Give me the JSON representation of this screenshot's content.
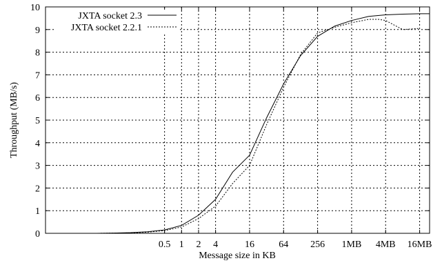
{
  "chart_data": {
    "type": "line",
    "xlabel": "Message size in KB",
    "ylabel": "Throughput (MB/s)",
    "xscale": "log2",
    "xlim_kb": [
      0.00390625,
      24576
    ],
    "ylim": [
      0,
      10
    ],
    "grid": true,
    "legend_position": "top-left",
    "x_ticks": [
      {
        "value_kb": 0.5,
        "label": "0.5"
      },
      {
        "value_kb": 1,
        "label": "1"
      },
      {
        "value_kb": 2,
        "label": "2"
      },
      {
        "value_kb": 4,
        "label": "4"
      },
      {
        "value_kb": 16,
        "label": "16"
      },
      {
        "value_kb": 64,
        "label": "64"
      },
      {
        "value_kb": 256,
        "label": "256"
      },
      {
        "value_kb": 1024,
        "label": "1MB"
      },
      {
        "value_kb": 4096,
        "label": "4MB"
      },
      {
        "value_kb": 16384,
        "label": "16MB"
      }
    ],
    "y_ticks": [
      0,
      1,
      2,
      3,
      4,
      5,
      6,
      7,
      8,
      9,
      10
    ],
    "series": [
      {
        "name": "JXTA socket 2.3",
        "style": "solid",
        "color": "#000000",
        "points": [
          [
            0.00390625,
            0.0
          ],
          [
            0.0078125,
            0.0
          ],
          [
            0.015625,
            0.0
          ],
          [
            0.03125,
            0.0
          ],
          [
            0.0625,
            0.01
          ],
          [
            0.125,
            0.03
          ],
          [
            0.25,
            0.07
          ],
          [
            0.5,
            0.15
          ],
          [
            1,
            0.35
          ],
          [
            2,
            0.8
          ],
          [
            4,
            1.5
          ],
          [
            8,
            2.7
          ],
          [
            16,
            3.45
          ],
          [
            32,
            5.1
          ],
          [
            64,
            6.6
          ],
          [
            128,
            7.85
          ],
          [
            256,
            8.7
          ],
          [
            512,
            9.15
          ],
          [
            1024,
            9.4
          ],
          [
            2048,
            9.58
          ],
          [
            4096,
            9.65
          ],
          [
            8192,
            9.68
          ],
          [
            16384,
            9.7
          ],
          [
            24576,
            9.7
          ]
        ]
      },
      {
        "name": "JXTA socket 2.2.1",
        "style": "dotted",
        "color": "#000000",
        "points": [
          [
            0.00390625,
            0.0
          ],
          [
            0.0078125,
            0.0
          ],
          [
            0.015625,
            0.0
          ],
          [
            0.03125,
            0.0
          ],
          [
            0.0625,
            0.01
          ],
          [
            0.125,
            0.02
          ],
          [
            0.25,
            0.05
          ],
          [
            0.5,
            0.12
          ],
          [
            1,
            0.28
          ],
          [
            2,
            0.65
          ],
          [
            4,
            1.2
          ],
          [
            8,
            2.2
          ],
          [
            16,
            3.0
          ],
          [
            32,
            4.8
          ],
          [
            64,
            6.45
          ],
          [
            128,
            7.9
          ],
          [
            256,
            8.85
          ],
          [
            512,
            9.1
          ],
          [
            1024,
            9.3
          ],
          [
            2048,
            9.45
          ],
          [
            3072,
            9.45
          ],
          [
            4096,
            9.4
          ],
          [
            8192,
            9.0
          ],
          [
            16384,
            9.05
          ]
        ]
      }
    ]
  }
}
